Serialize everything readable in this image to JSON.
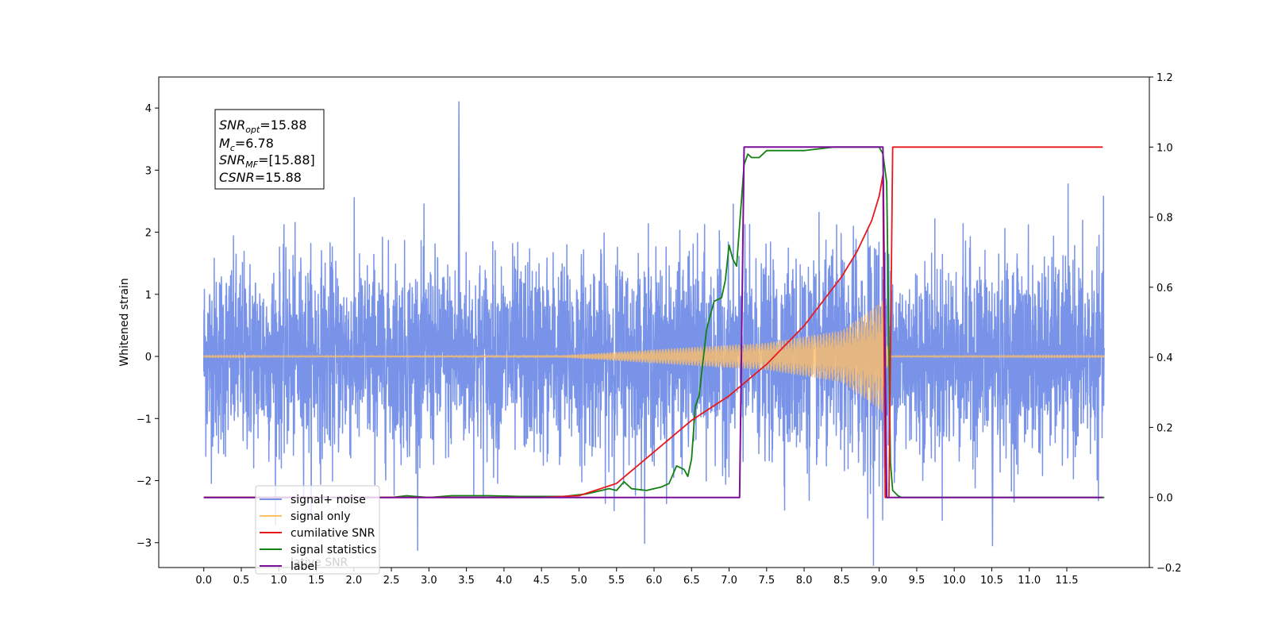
{
  "chart_data": {
    "type": "line",
    "ylabel_left": "Whitened strain",
    "xlim": [
      -0.6,
      12.6
    ],
    "ylim_left": [
      -3.4,
      4.5
    ],
    "ylim_right": [
      -0.2,
      1.2
    ],
    "x_ticks": [
      "0.0",
      "0.5",
      "1.0",
      "1.5",
      "2.0",
      "2.5",
      "3.0",
      "3.5",
      "4.0",
      "4.5",
      "5.0",
      "5.5",
      "6.0",
      "6.5",
      "7.0",
      "7.5",
      "8.0",
      "8.5",
      "9.0",
      "9.5",
      "10.0",
      "10.5",
      "11.0",
      "11.5"
    ],
    "y_ticks_left": [
      "−3",
      "−2",
      "−1",
      "0",
      "1",
      "2",
      "3",
      "4"
    ],
    "y_ticks_right": [
      "−0.2",
      "0.0",
      "0.2",
      "0.4",
      "0.6",
      "0.8",
      "1.0",
      "1.2"
    ],
    "grid": false,
    "legend_position": "lower-left",
    "annotation": {
      "snr_opt": {
        "sym": "SNR",
        "sub": "opt",
        "value": "=15.88"
      },
      "mc": {
        "sym": "M",
        "sub": "c",
        "value": "=6.78"
      },
      "snr_mf": {
        "sym": "SNR",
        "sub": "MF",
        "value": "=[15.88]"
      },
      "csnr": {
        "sym": "CSNR",
        "value": "=15.88"
      }
    },
    "series": [
      {
        "name": "signal+ noise",
        "axis": "left",
        "color": "#7893e8",
        "style": "noise",
        "x_range": [
          0.0,
          12.0
        ],
        "envelope_peak_y": [
          4.1,
          -3.05
        ],
        "description_values": {
          "noise_sigma": 0.78,
          "chirp_peak_amplitude": 0.95,
          "chirp_end_x": 9.07
        }
      },
      {
        "name": "signal only",
        "axis": "left",
        "color": "#ffbf66",
        "style": "chirp",
        "x_range": [
          0.0,
          12.0
        ],
        "amplitude_points": [
          [
            0.0,
            0.005
          ],
          [
            4.8,
            0.02
          ],
          [
            5.6,
            0.08
          ],
          [
            6.5,
            0.15
          ],
          [
            7.5,
            0.22
          ],
          [
            8.5,
            0.42
          ],
          [
            9.0,
            0.85
          ],
          [
            9.07,
            0.95
          ],
          [
            9.12,
            0.01
          ],
          [
            12.0,
            0.005
          ]
        ]
      },
      {
        "name": "cumilative SNR",
        "axis": "right",
        "color": "#e8191b",
        "style": "line",
        "x": [
          0.0,
          4.5,
          5.0,
          5.5,
          6.0,
          6.5,
          7.0,
          7.5,
          8.0,
          8.5,
          8.7,
          8.9,
          9.0,
          9.05,
          9.08,
          9.13,
          9.18,
          11.98
        ],
        "y": [
          0.0,
          0.0,
          0.005,
          0.04,
          0.13,
          0.22,
          0.29,
          0.38,
          0.49,
          0.63,
          0.7,
          0.79,
          0.86,
          0.92,
          0.0,
          0.0,
          1.0,
          1.0
        ]
      },
      {
        "name": "signal statistics",
        "axis": "right",
        "color": "#138013",
        "style": "line",
        "x": [
          0.0,
          2.5,
          2.7,
          3.0,
          3.3,
          3.5,
          3.8,
          4.2,
          4.8,
          5.1,
          5.4,
          5.5,
          5.6,
          5.7,
          5.9,
          6.0,
          6.1,
          6.2,
          6.3,
          6.4,
          6.45,
          6.5,
          6.55,
          6.6,
          6.7,
          6.8,
          6.9,
          6.95,
          7.0,
          7.05,
          7.1,
          7.2,
          7.25,
          7.3,
          7.4,
          7.5,
          7.6,
          7.8,
          8.0,
          8.2,
          8.4,
          8.6,
          8.8,
          9.0,
          9.05,
          9.1,
          9.15,
          9.18,
          9.25,
          9.3,
          12.0
        ],
        "y": [
          0.0,
          0.0,
          0.005,
          0.0,
          0.005,
          0.005,
          0.005,
          0.003,
          0.003,
          0.01,
          0.025,
          0.02,
          0.045,
          0.025,
          0.02,
          0.025,
          0.03,
          0.04,
          0.09,
          0.08,
          0.06,
          0.11,
          0.26,
          0.29,
          0.48,
          0.56,
          0.57,
          0.62,
          0.72,
          0.68,
          0.66,
          0.95,
          0.98,
          0.97,
          0.97,
          0.99,
          0.99,
          0.99,
          0.99,
          0.995,
          1.0,
          1.0,
          1.0,
          1.0,
          0.98,
          0.9,
          0.1,
          0.02,
          0.005,
          0.0,
          0.0
        ]
      },
      {
        "name": "label",
        "axis": "right",
        "color": "#7a0f99",
        "style": "line",
        "x": [
          0.0,
          7.14,
          7.2,
          9.05,
          9.1,
          11.98
        ],
        "y": [
          0.0,
          0.0,
          1.0,
          1.0,
          0.0,
          0.0
        ]
      }
    ],
    "legend": [
      {
        "label": "signal+ noise",
        "color": "#7893e8"
      },
      {
        "label": "signal only",
        "color": "#ffbf66"
      },
      {
        "label": "cumilative SNR",
        "color": "#e8191b"
      },
      {
        "label": "signal statistics",
        "color": "#138013"
      },
      {
        "label": "label",
        "color": "#7a0f99"
      }
    ],
    "legend_ghost_text": "lative SNR"
  }
}
